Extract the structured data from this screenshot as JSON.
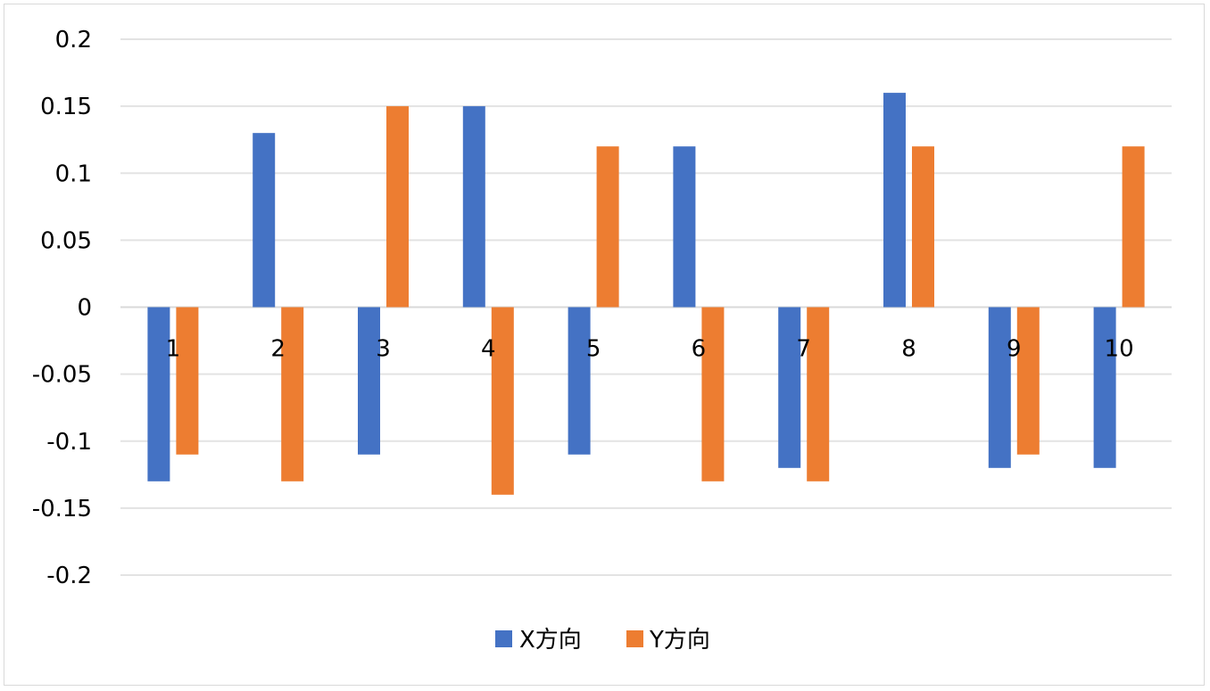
{
  "chart_data": {
    "type": "bar",
    "title": "",
    "xlabel": "",
    "ylabel": "",
    "categories": [
      "1",
      "2",
      "3",
      "4",
      "5",
      "6",
      "7",
      "8",
      "9",
      "10"
    ],
    "series": [
      {
        "name": "X方向",
        "color": "#4472c4",
        "values": [
          -0.13,
          0.13,
          -0.11,
          0.15,
          -0.11,
          0.12,
          -0.12,
          0.16,
          -0.12,
          -0.12
        ]
      },
      {
        "name": "Y方向",
        "color": "#ed7d31",
        "values": [
          -0.11,
          -0.13,
          0.15,
          -0.14,
          0.12,
          -0.13,
          -0.13,
          0.12,
          -0.11,
          0.12
        ]
      }
    ],
    "ylim": [
      -0.2,
      0.2
    ],
    "yticks": [
      0.2,
      0.15,
      0.1,
      0.05,
      0,
      -0.05,
      -0.1,
      -0.15,
      -0.2
    ],
    "ytick_labels": [
      "0.2",
      "0.15",
      "0.1",
      "0.05",
      "0",
      "-0.05",
      "-0.1",
      "-0.15",
      "-0.2"
    ],
    "grid": true,
    "legend_position": "bottom-center"
  }
}
